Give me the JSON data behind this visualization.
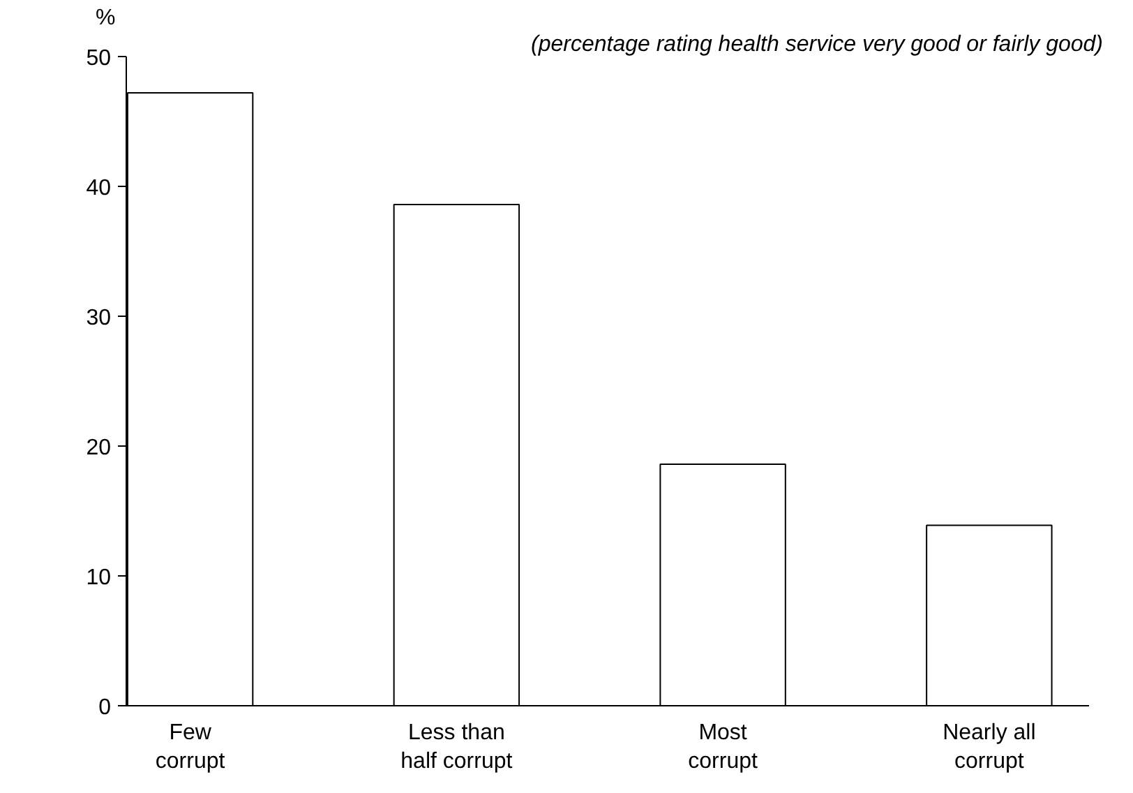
{
  "chart_data": {
    "type": "bar",
    "subtitle": "(percentage rating health service very good or fairly good)",
    "ylabel": "%",
    "categories": [
      "Few\ncorrupt",
      "Less than\nhalf corrupt",
      "Most\ncorrupt",
      "Nearly all\ncorrupt"
    ],
    "values": [
      47.2,
      38.6,
      18.6,
      13.9
    ],
    "color": "#ffffff",
    "ylim": [
      0,
      50
    ],
    "yticks": [
      0,
      10,
      20,
      30,
      40,
      50
    ],
    "grid": false
  }
}
